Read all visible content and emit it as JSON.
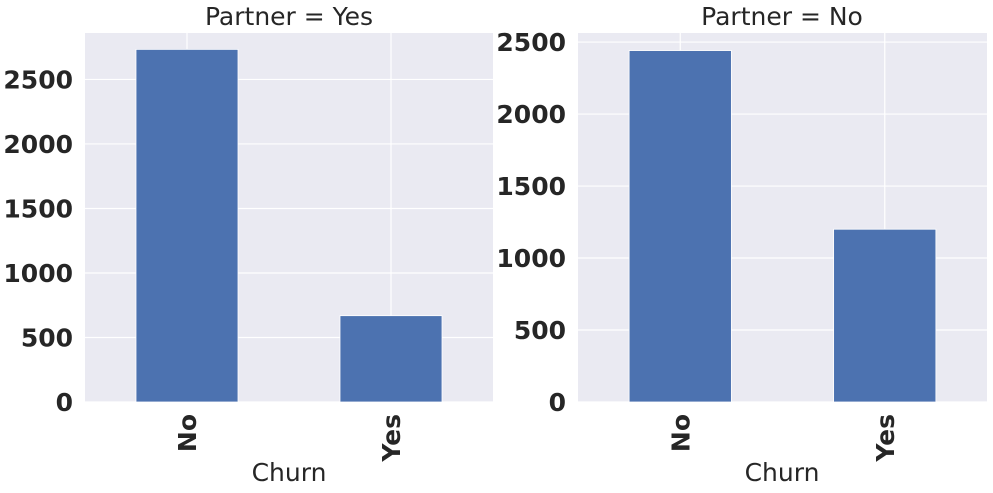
{
  "colors": {
    "plot_background": "#eaeaf2",
    "grid": "#ffffff",
    "bar": "#4c72b0",
    "text": "#262626"
  },
  "chart_data": [
    {
      "type": "bar",
      "title": "Partner = Yes",
      "xlabel": "Churn",
      "ylabel": "",
      "categories": [
        "No",
        "Yes"
      ],
      "values": [
        2733,
        669
      ],
      "ylim": [
        0,
        2860
      ],
      "yticks": [
        "0",
        "500",
        "1000",
        "1500",
        "2000",
        "2500"
      ],
      "grid": true,
      "legend": "none"
    },
    {
      "type": "bar",
      "title": "Partner = No",
      "xlabel": "Churn",
      "ylabel": "",
      "categories": [
        "No",
        "Yes"
      ],
      "values": [
        2441,
        1200
      ],
      "ylim": [
        0,
        2563
      ],
      "yticks": [
        "0",
        "500",
        "1000",
        "1500",
        "2000",
        "2500"
      ],
      "grid": true,
      "legend": "none"
    }
  ]
}
